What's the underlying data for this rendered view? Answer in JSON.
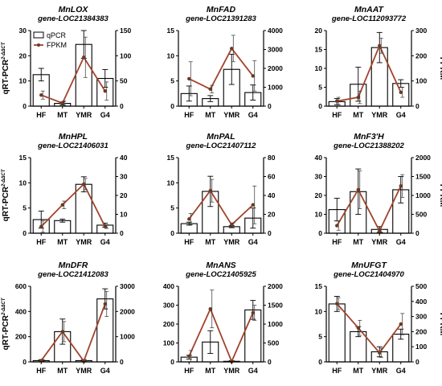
{
  "colors": {
    "bar_fill": "#ffffff",
    "bar_stroke": "#000000",
    "line": "#a0442c",
    "marker": "#6b3a22"
  },
  "legend": {
    "bar_label": "qPCR",
    "line_label": "FPKM"
  },
  "left_ylabel": {
    "main": "qRT-PCR",
    "sup": "2-ΔΔCT"
  },
  "right_ylabel": "FPKM",
  "chart_data": [
    {
      "type": "bar+line",
      "title": "MnLOX",
      "subtitle": "gene-LOC21384383",
      "categories": [
        "HF",
        "MT",
        "YMR",
        "G4"
      ],
      "left_ticks": [
        0,
        10,
        20,
        30
      ],
      "ylim": [
        0,
        30
      ],
      "right_ticks": [
        0,
        50,
        100,
        150
      ],
      "ylim2": [
        0,
        150
      ],
      "bars": [
        12.5,
        1.1,
        24.5,
        11.0
      ],
      "bar_err": [
        2.5,
        0.6,
        5.5,
        3.5
      ],
      "line": [
        22,
        6,
        97,
        30
      ],
      "line_err": [
        8,
        4,
        40,
        18
      ],
      "legend": true,
      "left_label": true,
      "right_label": false
    },
    {
      "type": "bar+line",
      "title": "MnFAD",
      "subtitle": "gene-LOC21391283",
      "categories": [
        "HF",
        "MT",
        "YMR",
        "G4"
      ],
      "left_ticks": [
        0,
        5,
        10,
        15
      ],
      "ylim": [
        0,
        15
      ],
      "right_ticks": [
        0,
        1000,
        2000,
        3000,
        4000
      ],
      "ylim2": [
        0,
        4000
      ],
      "bars": [
        2.5,
        1.5,
        7.3,
        2.7
      ],
      "bar_err": [
        1.5,
        0.6,
        3.0,
        1.5
      ],
      "line": [
        1450,
        900,
        3050,
        1600
      ],
      "line_err": [
        900,
        200,
        700,
        800
      ],
      "legend": false,
      "left_label": false,
      "right_label": false
    },
    {
      "type": "bar+line",
      "title": "MnAAT",
      "subtitle": "gene-LOC112093772",
      "categories": [
        "HF",
        "MT",
        "YMR",
        "G4"
      ],
      "left_ticks": [
        0,
        5,
        10,
        15,
        20
      ],
      "ylim": [
        0,
        20
      ],
      "right_ticks": [
        0,
        100,
        200,
        300
      ],
      "ylim2": [
        0,
        300
      ],
      "bars": [
        1.2,
        5.8,
        15.5,
        6.0
      ],
      "bar_err": [
        0.8,
        4.5,
        4.0,
        1.0
      ],
      "line": [
        20,
        35,
        240,
        55
      ],
      "line_err": [
        15,
        25,
        30,
        20
      ],
      "legend": false,
      "left_label": false,
      "right_label": true
    },
    {
      "type": "bar+line",
      "title": "MnHPL",
      "subtitle": "gene-LOC21406031",
      "categories": [
        "HF",
        "MT",
        "YMR",
        "G4"
      ],
      "left_ticks": [
        0,
        5,
        10,
        15
      ],
      "ylim": [
        0,
        15
      ],
      "right_ticks": [
        0,
        10,
        20,
        30,
        40
      ],
      "ylim2": [
        0,
        40
      ],
      "bars": [
        2.7,
        2.5,
        9.7,
        1.6
      ],
      "bar_err": [
        1.7,
        0.3,
        1.5,
        0.4
      ],
      "line": [
        3.5,
        15,
        26,
        3.5
      ],
      "line_err": [
        3,
        2,
        3,
        1
      ],
      "legend": false,
      "left_label": true,
      "right_label": false
    },
    {
      "type": "bar+line",
      "title": "MnPAL",
      "subtitle": "gene-LOC21407112",
      "categories": [
        "HF",
        "MT",
        "YMR",
        "G4"
      ],
      "left_ticks": [
        0,
        5,
        10,
        15
      ],
      "ylim": [
        0,
        15
      ],
      "right_ticks": [
        0,
        20,
        40,
        60,
        80
      ],
      "ylim2": [
        0,
        80
      ],
      "bars": [
        1.9,
        8.3,
        1.3,
        3.0
      ],
      "bar_err": [
        0.3,
        3.0,
        0.2,
        2.0
      ],
      "line": [
        15,
        45,
        9,
        30
      ],
      "line_err": [
        6,
        12,
        2,
        20
      ],
      "legend": false,
      "left_label": false,
      "right_label": false
    },
    {
      "type": "bar+line",
      "title": "MnF3'H",
      "subtitle": "gene-LOC21388202",
      "categories": [
        "HF",
        "MT",
        "YMR",
        "G4"
      ],
      "left_ticks": [
        0,
        10,
        20,
        30,
        40
      ],
      "ylim": [
        0,
        40
      ],
      "right_ticks": [
        0,
        500,
        1000,
        1500,
        2000
      ],
      "ylim2": [
        0,
        2000
      ],
      "bars": [
        12.5,
        22.0,
        2.0,
        23.0
      ],
      "bar_err": [
        6.0,
        12.0,
        1.5,
        7.0
      ],
      "line": [
        200,
        1150,
        60,
        1250
      ],
      "line_err": [
        120,
        500,
        40,
        300
      ],
      "legend": false,
      "left_label": false,
      "right_label": true
    },
    {
      "type": "bar+line",
      "title": "MnDFR",
      "subtitle": "gene-LOC21412083",
      "categories": [
        "HF",
        "MT",
        "YMR",
        "G4"
      ],
      "left_ticks": [
        0,
        200,
        400,
        600
      ],
      "ylim": [
        0,
        600
      ],
      "right_ticks": [
        0,
        1000,
        2000,
        3000
      ],
      "ylim2": [
        0,
        3000
      ],
      "bars": [
        10,
        240,
        10,
        500
      ],
      "bar_err": [
        8,
        100,
        8,
        80
      ],
      "line": [
        50,
        1200,
        30,
        2300
      ],
      "line_err": [
        40,
        400,
        20,
        500
      ],
      "legend": false,
      "left_label": true,
      "right_label": false
    },
    {
      "type": "bar+line",
      "title": "MnANS",
      "subtitle": "gene-LOC21405925",
      "categories": [
        "HF",
        "MT",
        "YMR",
        "G4"
      ],
      "left_ticks": [
        0,
        100,
        200,
        300,
        400
      ],
      "ylim": [
        0,
        400
      ],
      "right_ticks": [
        0,
        500,
        1000,
        1500,
        2000
      ],
      "ylim2": [
        0,
        2000
      ],
      "bars": [
        25,
        105,
        3,
        275
      ],
      "bar_err": [
        10,
        60,
        3,
        50
      ],
      "line": [
        150,
        1400,
        10,
        1300
      ],
      "line_err": [
        150,
        500,
        10,
        200
      ],
      "legend": false,
      "left_label": false,
      "right_label": false
    },
    {
      "type": "bar+line",
      "title": "MnUFGT",
      "subtitle": "gene-LOC21404970",
      "categories": [
        "HF",
        "MT",
        "YMR",
        "G4"
      ],
      "left_ticks": [
        0,
        5,
        10,
        15
      ],
      "ylim": [
        0,
        15
      ],
      "right_ticks": [
        0,
        100,
        200,
        300,
        400,
        500
      ],
      "ylim2": [
        0,
        500
      ],
      "bars": [
        11.5,
        6.0,
        2.0,
        5.5
      ],
      "bar_err": [
        1.5,
        1.0,
        1.0,
        1.0
      ],
      "line": [
        385,
        225,
        60,
        250
      ],
      "line_err": [
        40,
        50,
        30,
        70
      ],
      "legend": false,
      "left_label": false,
      "right_label": true
    }
  ]
}
